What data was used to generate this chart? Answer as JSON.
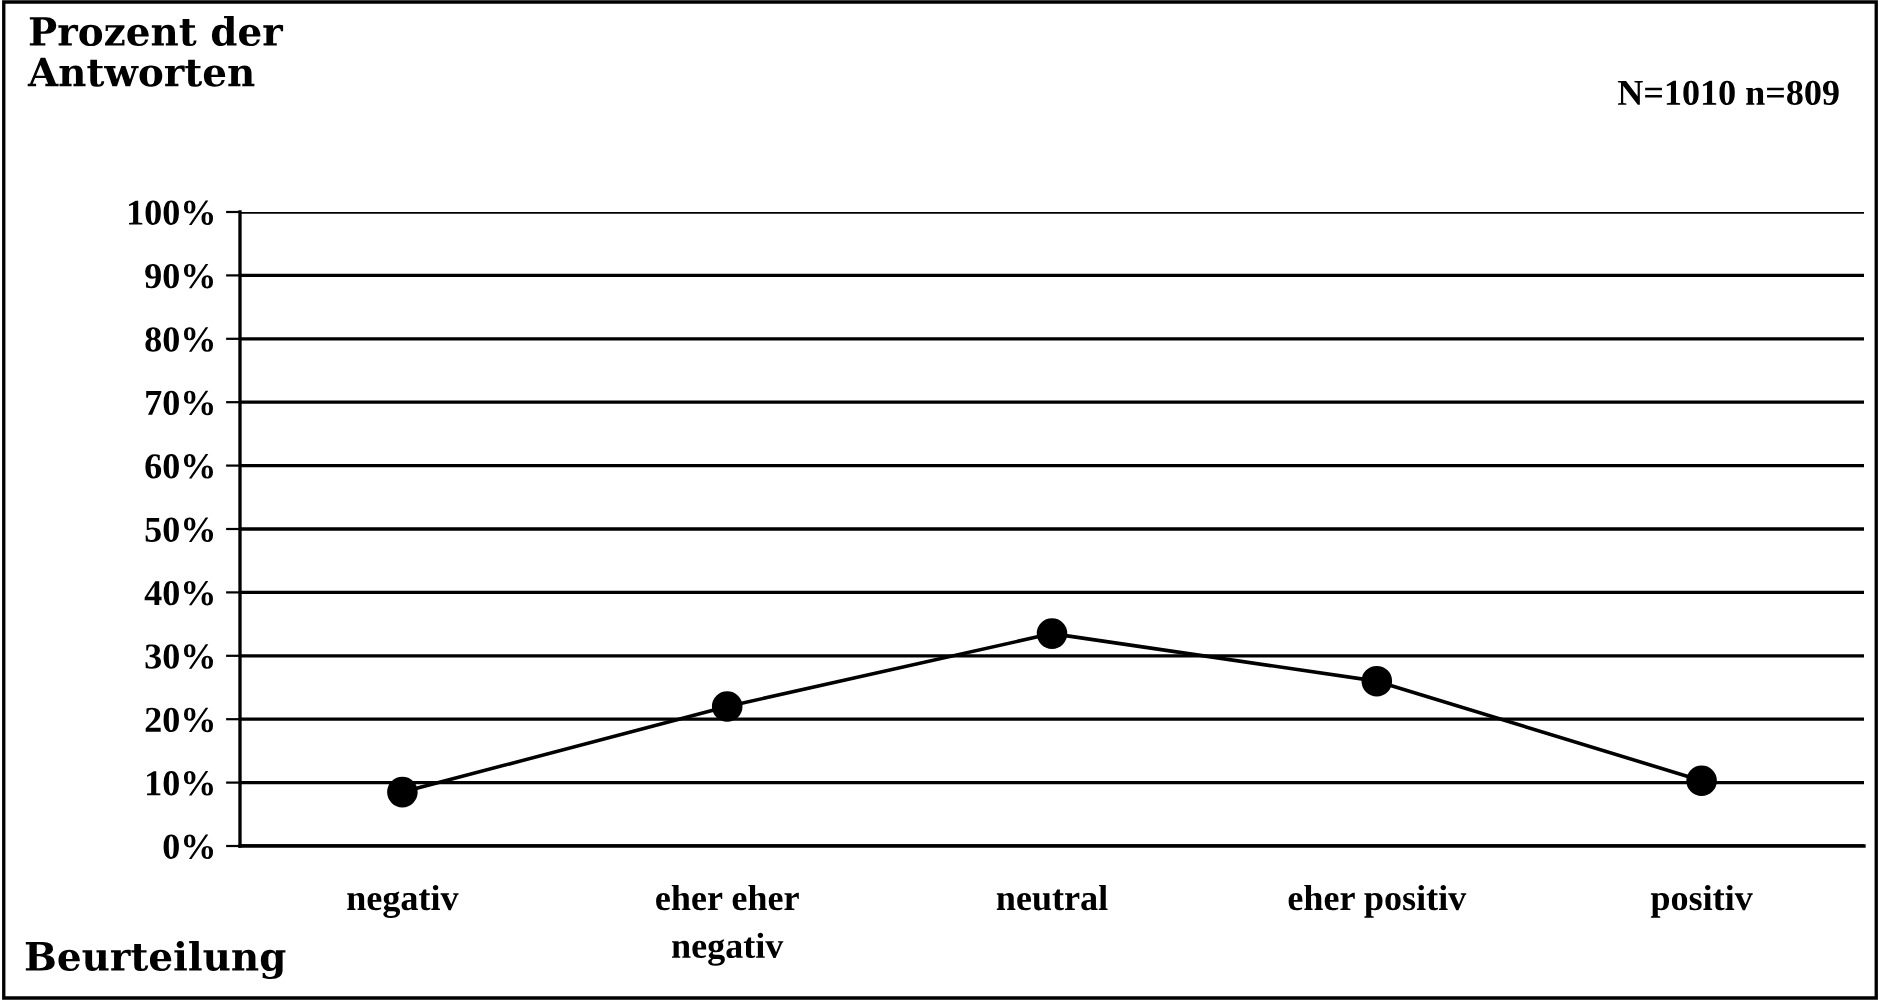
{
  "chart_data": {
    "type": "line",
    "ylabel": "Prozent der\nAntworten",
    "xlabel": "Beurteilung",
    "annotations": [
      "N=1010 n=809"
    ],
    "categories": [
      "negativ",
      "eher eher\nnegativ",
      "neutral",
      "eher positiv",
      "positiv"
    ],
    "series": [
      {
        "color": "#000000",
        "values": [
          8.5,
          22,
          33.5,
          26,
          10.3
        ]
      }
    ],
    "ylim": [
      0,
      100
    ],
    "yticks": [
      {
        "value": 0,
        "label": "0%"
      },
      {
        "value": 10,
        "label": "10%"
      },
      {
        "value": 20,
        "label": "20%"
      },
      {
        "value": 30,
        "label": "30%"
      },
      {
        "value": 40,
        "label": "40%"
      },
      {
        "value": 50,
        "label": "50%"
      },
      {
        "value": 60,
        "label": "60%"
      },
      {
        "value": 70,
        "label": "70%"
      },
      {
        "value": 80,
        "label": "80%"
      },
      {
        "value": 90,
        "label": "90%"
      },
      {
        "value": 100,
        "label": "100%"
      }
    ],
    "grid": "y",
    "marker": "circle",
    "line_style": "solid"
  }
}
